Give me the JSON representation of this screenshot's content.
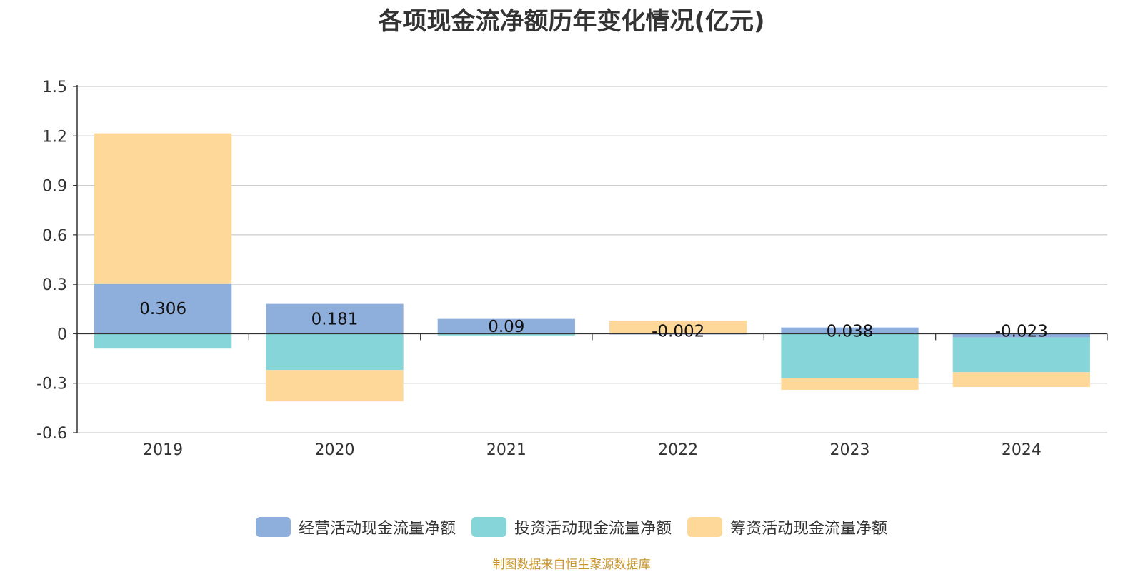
{
  "chart_data": {
    "type": "bar",
    "stacked": true,
    "title": "各项现金流净额历年变化情况(亿元)",
    "xlabel": "",
    "ylabel": "",
    "ylim": [
      -0.6,
      1.5
    ],
    "yticks": [
      -0.6,
      -0.3,
      0,
      0.3,
      0.6,
      0.9,
      1.2,
      1.5
    ],
    "ytick_labels": [
      "-0.6",
      "-0.3",
      "0",
      "0.3",
      "0.6",
      "0.9",
      "1.2",
      "1.5"
    ],
    "grid": true,
    "legend_position": "bottom",
    "categories": [
      "2019",
      "2020",
      "2021",
      "2022",
      "2023",
      "2024"
    ],
    "series": [
      {
        "name": "经营活动现金流量净额",
        "color": "#8eaedc",
        "values": [
          0.306,
          0.181,
          0.09,
          -0.002,
          0.038,
          -0.023
        ],
        "labels": [
          "0.306",
          "0.181",
          "0.09",
          "-0.002",
          "0.038",
          "-0.023"
        ]
      },
      {
        "name": "投资活动现金流量净额",
        "color": "#86d5d8",
        "values": [
          -0.09,
          -0.22,
          -0.01,
          0.0,
          -0.27,
          -0.21
        ]
      },
      {
        "name": "筹资活动现金流量净额",
        "color": "#fed899",
        "values": [
          0.91,
          -0.19,
          0.0,
          0.08,
          -0.07,
          -0.09
        ]
      }
    ]
  },
  "source_note": "制图数据来自恒生聚源数据库"
}
